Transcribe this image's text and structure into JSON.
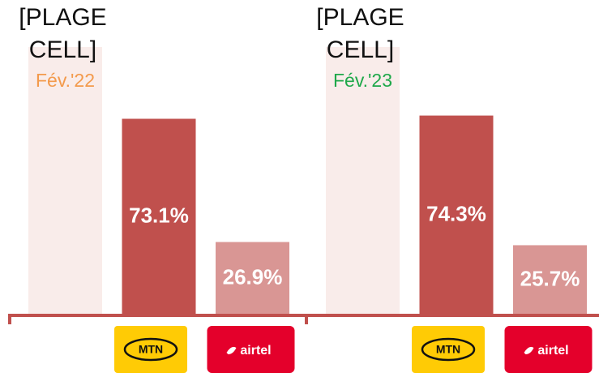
{
  "chart_data": [
    {
      "type": "bar",
      "title": "[PLAGE CELL]",
      "subtitle": "Fév.'22",
      "subtitle_color": "#f39a4c",
      "categories": [
        null,
        "MTN",
        "airtel"
      ],
      "values": [
        100,
        73.1,
        26.9
      ],
      "value_labels": [
        null,
        "73.1%",
        "26.9%"
      ],
      "colors": [
        "#f9ecea",
        "#c0504d",
        "#d99694"
      ],
      "ylim": [
        0,
        100
      ]
    },
    {
      "type": "bar",
      "title": "[PLAGE CELL]",
      "subtitle": "Fév.'23",
      "subtitle_color": "#1fa84a",
      "categories": [
        null,
        "MTN",
        "airtel"
      ],
      "values": [
        100,
        74.3,
        25.7
      ],
      "value_labels": [
        null,
        "74.3%",
        "25.7%"
      ],
      "colors": [
        "#f9ecea",
        "#c0504d",
        "#d99694"
      ],
      "ylim": [
        0,
        100
      ]
    }
  ]
}
